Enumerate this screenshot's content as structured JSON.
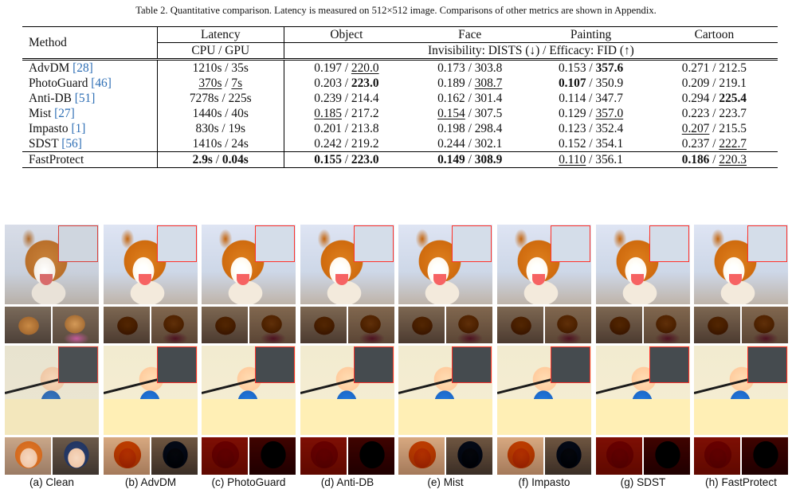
{
  "caption": "Table 2. Quantitative comparison. Latency is measured on 512×512 image. Comparisons of other metrics are shown in Appendix.",
  "table": {
    "header": {
      "method": "Method",
      "latency": "Latency",
      "latency_sub": "CPU / GPU",
      "object": "Object",
      "face": "Face",
      "painting": "Painting",
      "cartoon": "Cartoon",
      "metric_sub": "Invisibility: DISTS (↓) / Efficacy: FID (↑)"
    },
    "rows": [
      {
        "name": "AdvDM ",
        "cite": "[28]",
        "cpu": "1210s",
        "gpu": "35s",
        "obj_a": "0.197",
        "obj_b": "220.0",
        "face_a": "0.173",
        "face_b": "303.8",
        "paint_a": "0.153",
        "paint_b": "357.6",
        "cart_a": "0.271",
        "cart_b": "212.5"
      },
      {
        "name": "PhotoGuard ",
        "cite": "[46]",
        "cpu": "370s",
        "gpu": "7s",
        "obj_a": "0.203",
        "obj_b": "223.0",
        "face_a": "0.189",
        "face_b": "308.7",
        "paint_a": "0.107",
        "paint_b": "350.9",
        "cart_a": "0.209",
        "cart_b": "219.1"
      },
      {
        "name": "Anti-DB ",
        "cite": "[51]",
        "cpu": "7278s",
        "gpu": "225s",
        "obj_a": "0.239",
        "obj_b": "214.4",
        "face_a": "0.162",
        "face_b": "301.4",
        "paint_a": "0.114",
        "paint_b": "347.7",
        "cart_a": "0.294",
        "cart_b": "225.4"
      },
      {
        "name": "Mist ",
        "cite": "[27]",
        "cpu": "1440s",
        "gpu": "40s",
        "obj_a": "0.185",
        "obj_b": "217.2",
        "face_a": "0.154",
        "face_b": "307.5",
        "paint_a": "0.129",
        "paint_b": "357.0",
        "cart_a": "0.223",
        "cart_b": "223.7"
      },
      {
        "name": "Impasto ",
        "cite": "[1]",
        "cpu": "830s",
        "gpu": "19s",
        "obj_a": "0.201",
        "obj_b": "213.8",
        "face_a": "0.198",
        "face_b": "298.4",
        "paint_a": "0.123",
        "paint_b": "352.4",
        "cart_a": "0.207",
        "cart_b": "215.5"
      },
      {
        "name": "SDST ",
        "cite": "[56]",
        "cpu": "1410s",
        "gpu": "24s",
        "obj_a": "0.242",
        "obj_b": "219.2",
        "face_a": "0.244",
        "face_b": "302.1",
        "paint_a": "0.152",
        "paint_b": "354.1",
        "cart_a": "0.237",
        "cart_b": "222.7"
      }
    ],
    "ours": {
      "name": "FastProtect",
      "cpu": "2.9s",
      "gpu": "0.04s",
      "obj_a": "0.155",
      "obj_b": "223.0",
      "face_a": "0.149",
      "face_b": "308.9",
      "paint_a": "0.110",
      "paint_b": "356.1",
      "cart_a": "0.186",
      "cart_b": "220.3"
    },
    "sep": " / "
  },
  "figure_labels": [
    "(a) Clean",
    "(b) AdvDM",
    "(c) PhotoGuard",
    "(d) Anti-DB",
    "(e) Mist",
    "(f) Impasto",
    "(g) SDST",
    "(h) FastProtect"
  ],
  "colors": {
    "citation": "#2f6fb5",
    "inset_border": "#d9403a"
  }
}
